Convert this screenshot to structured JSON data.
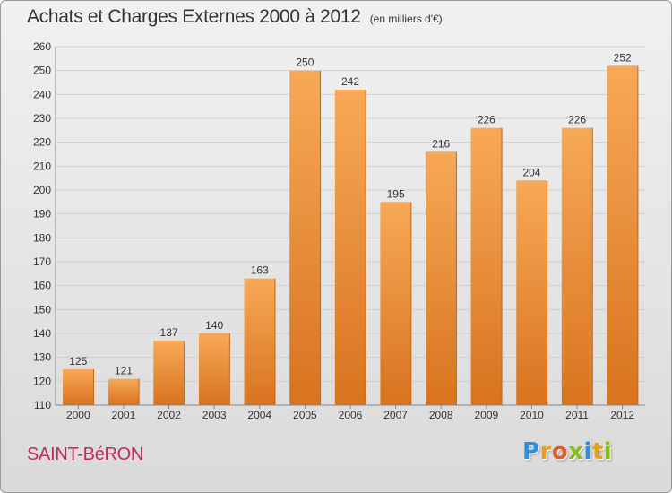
{
  "title": "Achats et Charges Externes 2000 à 2012",
  "unit_note": "(en milliers d'€)",
  "commune": "SAINT-BéRON",
  "logo": {
    "letters": [
      {
        "char": "P",
        "color": "#2f8fd8"
      },
      {
        "char": "r",
        "color": "#e6a020"
      },
      {
        "char": "o",
        "color": "#e05a2a"
      },
      {
        "char": "x",
        "color": "#8bbb22"
      },
      {
        "char": "i",
        "color": "#2f8fd8"
      },
      {
        "char": "t",
        "color": "#e6a020"
      },
      {
        "char": "i",
        "color": "#8bbb22"
      }
    ]
  },
  "colors": {
    "bar_light": "#f7a957",
    "bar_dark": "#d8731f",
    "grid": "#cfcfcf",
    "axis_text": "#333333",
    "commune_text": "#c22a5e"
  },
  "chart_data": {
    "type": "bar",
    "categories": [
      "2000",
      "2001",
      "2002",
      "2003",
      "2004",
      "2005",
      "2006",
      "2007",
      "2008",
      "2009",
      "2010",
      "2011",
      "2012"
    ],
    "values": [
      125,
      121,
      137,
      140,
      163,
      250,
      242,
      195,
      216,
      226,
      204,
      226,
      252
    ],
    "ylim": [
      110,
      260
    ],
    "yticks": [
      110,
      120,
      130,
      140,
      150,
      160,
      170,
      180,
      190,
      200,
      210,
      220,
      230,
      240,
      250,
      260
    ],
    "grid": true,
    "data_labels": true
  }
}
